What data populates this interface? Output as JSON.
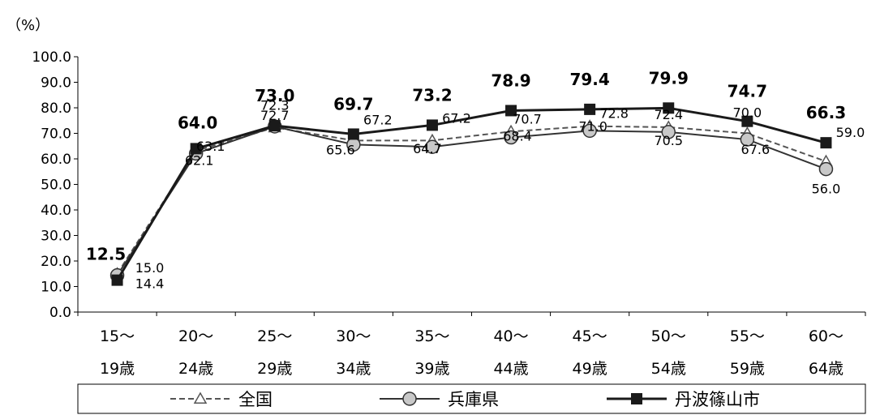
{
  "chart_data": {
    "type": "line",
    "unit_label": "（%）",
    "categories": [
      [
        "15～",
        "19歳"
      ],
      [
        "20～",
        "24歳"
      ],
      [
        "25～",
        "29歳"
      ],
      [
        "30～",
        "34歳"
      ],
      [
        "35～",
        "39歳"
      ],
      [
        "40～",
        "44歳"
      ],
      [
        "45～",
        "49歳"
      ],
      [
        "50～",
        "54歳"
      ],
      [
        "55～",
        "59歳"
      ],
      [
        "60～",
        "64歳"
      ]
    ],
    "ylim": [
      0,
      100
    ],
    "yticks": [
      "0.0",
      "10.0",
      "20.0",
      "30.0",
      "40.0",
      "50.0",
      "60.0",
      "70.0",
      "80.0",
      "90.0",
      "100.0"
    ],
    "grid": false,
    "legend_position": "bottom",
    "series": [
      {
        "name": "全国",
        "style": "dashed-triangle",
        "color": "#555555",
        "values": [
          15.0,
          63.1,
          72.3,
          67.2,
          67.2,
          70.7,
          72.8,
          72.4,
          70.0,
          59.0
        ],
        "labels": [
          "15.0",
          "63.1",
          "72.3",
          "67.2",
          "67.2",
          "70.7",
          "72.8",
          "72.4",
          "70.0",
          "59.0"
        ]
      },
      {
        "name": "兵庫県",
        "style": "solid-circle",
        "color": "#333333",
        "values": [
          14.4,
          62.1,
          72.7,
          65.6,
          64.7,
          68.4,
          71.0,
          70.5,
          67.6,
          56.0
        ],
        "labels": [
          "14.4",
          "62.1",
          "72.7",
          "65.6",
          "64.7",
          "68.4",
          "71.0",
          "70.5",
          "67.6",
          "56.0"
        ]
      },
      {
        "name": "丹波篠山市",
        "style": "solid-square",
        "color": "#1a1a1a",
        "values": [
          12.5,
          64.0,
          73.0,
          69.7,
          73.2,
          78.9,
          79.4,
          79.9,
          74.7,
          66.3
        ],
        "labels": [
          "12.5",
          "64.0",
          "73.0",
          "69.7",
          "73.2",
          "78.9",
          "79.4",
          "79.9",
          "74.7",
          "66.3"
        ]
      }
    ]
  }
}
